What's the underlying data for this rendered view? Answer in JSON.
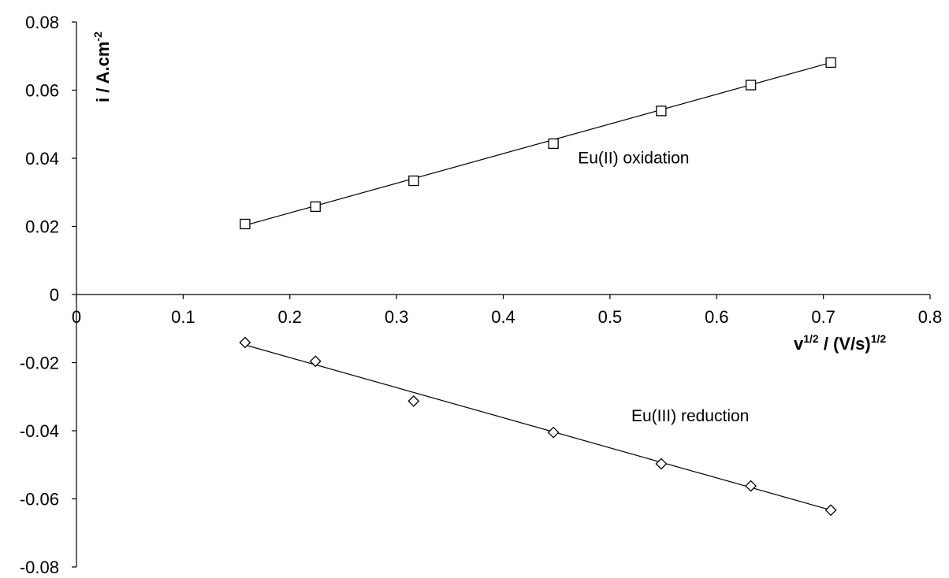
{
  "chart_data": {
    "type": "scatter",
    "title": "",
    "xlabel": {
      "base": "v",
      "sup1": "1/2",
      "mid": " / (V/s)",
      "sup2": "1/2"
    },
    "ylabel": {
      "base": "i / A.cm",
      "sup": "-2"
    },
    "xlim": [
      0,
      0.8
    ],
    "ylim": [
      -0.08,
      0.08
    ],
    "x_ticks": [
      0,
      0.1,
      0.2,
      0.3,
      0.4,
      0.5,
      0.6,
      0.7,
      0.8
    ],
    "x_tick_labels": [
      "0",
      "0.1",
      "0.2",
      "0.3",
      "0.4",
      "0.5",
      "0.6",
      "0.7",
      "0.8"
    ],
    "y_ticks": [
      0.08,
      0.06,
      0.04,
      0.02,
      0,
      -0.02,
      -0.04,
      -0.06,
      -0.08
    ],
    "y_tick_labels": [
      "0.08",
      "0.06",
      "0.04",
      "0.02",
      "0",
      "-0.02",
      "-0.04",
      "-0.06",
      "-0.08"
    ],
    "grid": false,
    "legend": "none",
    "series": [
      {
        "name": "Eu(II) oxidation",
        "marker": "square",
        "x": [
          0.158,
          0.224,
          0.316,
          0.447,
          0.548,
          0.632,
          0.707
        ],
        "y": [
          0.0207,
          0.0258,
          0.0334,
          0.0443,
          0.0539,
          0.0615,
          0.0681
        ],
        "trendline": {
          "x": [
            0.158,
            0.707
          ],
          "y": [
            0.0203,
            0.0681
          ]
        }
      },
      {
        "name": "Eu(III) reduction",
        "marker": "diamond",
        "x": [
          0.158,
          0.224,
          0.316,
          0.447,
          0.548,
          0.632,
          0.707
        ],
        "y": [
          -0.0141,
          -0.0196,
          -0.0313,
          -0.0405,
          -0.0497,
          -0.0562,
          -0.0633
        ],
        "trendline": {
          "x": [
            0.158,
            0.707
          ],
          "y": [
            -0.0148,
            -0.0633
          ]
        }
      }
    ],
    "annotations": [
      {
        "text": "Eu(II) oxidation",
        "x": 0.47,
        "y": 0.0385
      },
      {
        "text": "Eu(III) reduction",
        "x": 0.52,
        "y": -0.0372
      }
    ]
  }
}
